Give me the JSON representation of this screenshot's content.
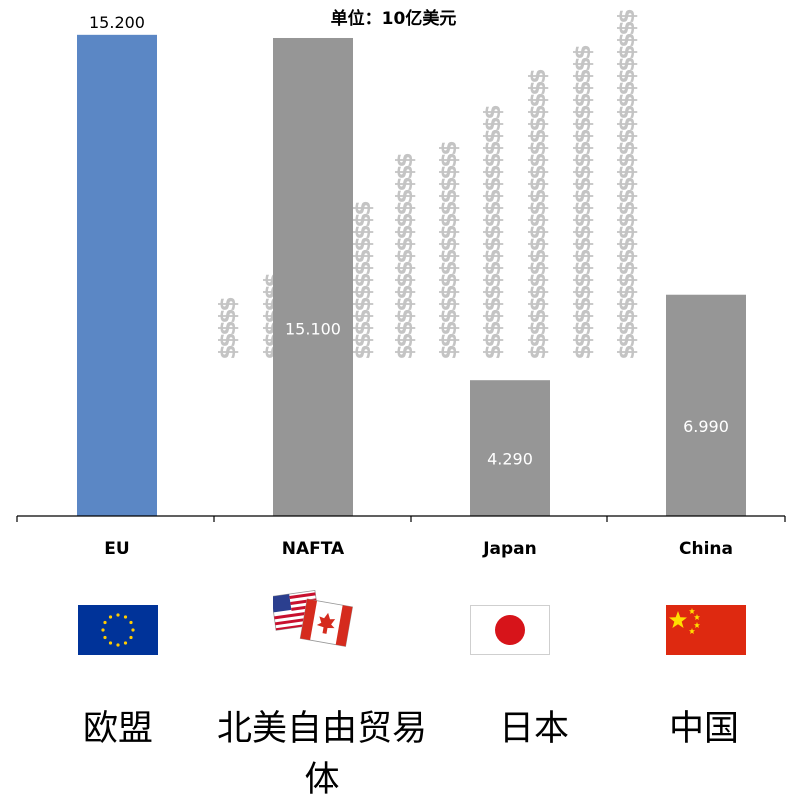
{
  "unit_label": "单位：10亿美元",
  "colors": {
    "eu": "#5b87c5",
    "other": "#969696",
    "dollar": "#c4c4c4",
    "axis": "#000000"
  },
  "chart_data": {
    "type": "bar",
    "categories": [
      "EU",
      "NAFTA",
      "Japan",
      "China"
    ],
    "categories_cn": [
      "欧盟",
      "北美自由贸易体",
      "日本",
      "中国"
    ],
    "values": [
      15.2,
      15.1,
      4.29,
      6.99
    ],
    "value_labels": [
      "15.200",
      "15.100",
      "4.290",
      "6.990"
    ],
    "ylim": [
      0,
      16.3
    ],
    "grid": false,
    "legend": "none",
    "bar_colors": [
      "#5b87c5",
      "#969696",
      "#969696",
      "#969696"
    ]
  },
  "flags": [
    {
      "icon": "eu-flag-icon"
    },
    {
      "icon": "us-canada-mexico-flags-icon"
    },
    {
      "icon": "japan-flag-icon"
    },
    {
      "icon": "china-flag-icon"
    }
  ]
}
